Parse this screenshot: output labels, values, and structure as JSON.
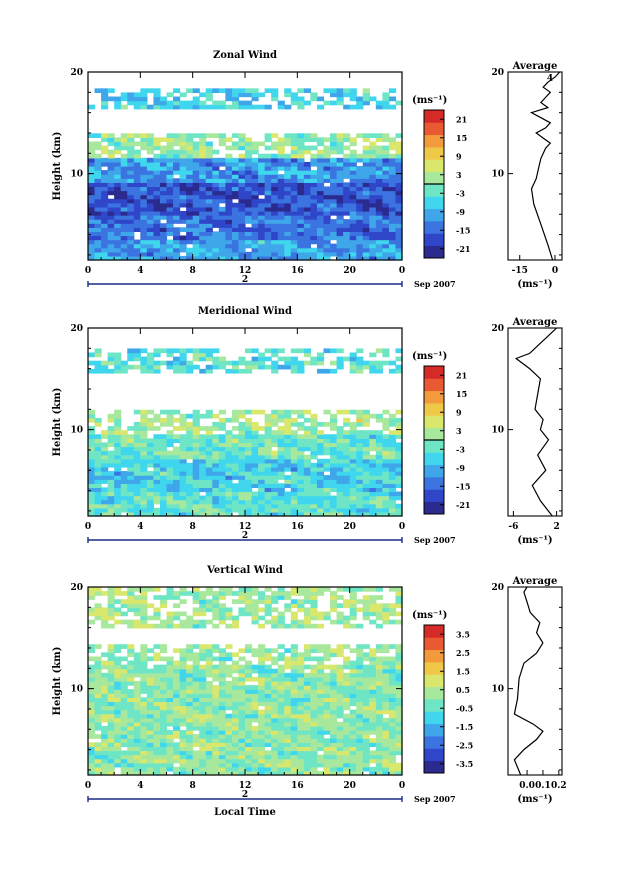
{
  "chart_data": [
    {
      "type": "heatmap",
      "title": "Zonal Wind",
      "xlabel": "",
      "ylabel": "Height (km)",
      "x_ticks": [
        "0",
        "4",
        "8",
        "12",
        "16",
        "20",
        "0"
      ],
      "y_ticks": [
        "10",
        "20"
      ],
      "x_range": [
        0,
        24
      ],
      "y_range": [
        1.5,
        20
      ],
      "date_marker": "2",
      "date_label": "Sep 2007",
      "colorbar": {
        "unit": "(ms⁻¹)",
        "labels": [
          "21",
          "15",
          "9",
          "3",
          "-3",
          "-9",
          "-15",
          "-21"
        ],
        "range": [
          -24,
          24
        ],
        "zero_line": true,
        "colors": [
          "#2b2a8f",
          "#2f46c9",
          "#3b74e0",
          "#3fa6ea",
          "#3fd6ee",
          "#6ee6c6",
          "#a8e89c",
          "#d9e86d",
          "#f0c848",
          "#f29a3c",
          "#ea5a32",
          "#d62a28"
        ]
      },
      "bands": [
        {
          "y": [
            1.5,
            3.5
          ],
          "value": -10
        },
        {
          "y": [
            3.5,
            6
          ],
          "value": -14
        },
        {
          "y": [
            6,
            9
          ],
          "value": -17
        },
        {
          "y": [
            9,
            11.5
          ],
          "value": -11
        },
        {
          "y": [
            11.5,
            14
          ],
          "value": 1,
          "patchy": true
        },
        {
          "y": [
            16.5,
            18.5
          ],
          "value": -6,
          "patchy": true
        }
      ],
      "average": {
        "title": "Average",
        "unit_label": "(ms⁻¹)",
        "x_ticks": [
          "-15",
          "0"
        ],
        "x_range": [
          -20,
          3
        ],
        "y_ticks": [
          "10",
          "20"
        ],
        "annotation": "4",
        "profile": [
          [
            1.5,
            -1
          ],
          [
            3,
            -3
          ],
          [
            5,
            -6
          ],
          [
            7,
            -9
          ],
          [
            8.5,
            -10
          ],
          [
            9.5,
            -8
          ],
          [
            10.5,
            -7
          ],
          [
            11.5,
            -6
          ],
          [
            12.5,
            -4
          ],
          [
            13,
            -2
          ],
          [
            13.5,
            -5
          ],
          [
            14,
            -8
          ],
          [
            14.5,
            -4
          ],
          [
            15,
            -2
          ],
          [
            15.5,
            -6
          ],
          [
            16,
            -10
          ],
          [
            16.5,
            -3
          ],
          [
            17,
            -6
          ],
          [
            17.5,
            -4
          ],
          [
            18,
            -2
          ],
          [
            18.5,
            -5
          ],
          [
            19,
            -3
          ],
          [
            19.5,
            0
          ],
          [
            20,
            2
          ]
        ]
      }
    },
    {
      "type": "heatmap",
      "title": "Meridional Wind",
      "xlabel": "",
      "ylabel": "Height (km)",
      "x_ticks": [
        "0",
        "4",
        "8",
        "12",
        "16",
        "20",
        "0"
      ],
      "y_ticks": [
        "10",
        "20"
      ],
      "x_range": [
        0,
        24
      ],
      "y_range": [
        1.5,
        20
      ],
      "date_marker": "2",
      "date_label": "Sep 2007",
      "colorbar": {
        "unit": "(ms⁻¹)",
        "labels": [
          "21",
          "15",
          "9",
          "3",
          "-3",
          "-9",
          "-15",
          "-21"
        ],
        "range": [
          -24,
          24
        ],
        "zero_line": true,
        "colors": [
          "#2b2a8f",
          "#2f46c9",
          "#3b74e0",
          "#3fa6ea",
          "#3fd6ee",
          "#6ee6c6",
          "#a8e89c",
          "#d9e86d",
          "#f0c848",
          "#f29a3c",
          "#ea5a32",
          "#d62a28"
        ]
      },
      "bands": [
        {
          "y": [
            1.5,
            4
          ],
          "value": -3
        },
        {
          "y": [
            4,
            7
          ],
          "value": -6
        },
        {
          "y": [
            7,
            9.5
          ],
          "value": -2
        },
        {
          "y": [
            9.5,
            12
          ],
          "value": 2,
          "patchy": true
        },
        {
          "y": [
            15.5,
            18
          ],
          "value": -4,
          "patchy": true
        }
      ],
      "average": {
        "title": "Average",
        "unit_label": "(ms⁻¹)",
        "x_ticks": [
          "-6",
          "2"
        ],
        "x_range": [
          -7,
          3
        ],
        "y_ticks": [
          "10",
          "20"
        ],
        "profile": [
          [
            1.5,
            1.2
          ],
          [
            3,
            -1
          ],
          [
            4.5,
            -2.5
          ],
          [
            6,
            0
          ],
          [
            7.5,
            -1.5
          ],
          [
            9,
            0.5
          ],
          [
            10,
            -1
          ],
          [
            11,
            -0.5
          ],
          [
            12,
            -2
          ],
          [
            13.5,
            -1.5
          ],
          [
            15,
            -1
          ],
          [
            16,
            -3
          ],
          [
            17,
            -5.5
          ],
          [
            17.5,
            -3
          ],
          [
            18.5,
            -1
          ],
          [
            19,
            0
          ],
          [
            19.5,
            1
          ],
          [
            20,
            2
          ]
        ]
      }
    },
    {
      "type": "heatmap",
      "title": "Vertical Wind",
      "xlabel": "Local Time",
      "ylabel": "Height (km)",
      "x_ticks": [
        "0",
        "4",
        "8",
        "12",
        "16",
        "20",
        "0"
      ],
      "y_ticks": [
        "10",
        "20"
      ],
      "x_range": [
        0,
        24
      ],
      "y_range": [
        1.5,
        20
      ],
      "date_marker": "2",
      "date_label": "Sep 2007",
      "colorbar": {
        "unit": "(ms⁻¹)",
        "labels": [
          "3.5",
          "2.5",
          "1.5",
          "0.5",
          "-0.5",
          "-1.5",
          "-2.5",
          "-3.5"
        ],
        "range": [
          -4,
          4
        ],
        "zero_line": false,
        "colors": [
          "#2b2a8f",
          "#2f46c9",
          "#3b74e0",
          "#3fa6ea",
          "#3fd6ee",
          "#6ee6c6",
          "#a8e89c",
          "#d9e86d",
          "#f0c848",
          "#f29a3c",
          "#ea5a32",
          "#d62a28"
        ]
      },
      "bands": [
        {
          "y": [
            1.5,
            12.5
          ],
          "value": 0.1
        },
        {
          "y": [
            12.5,
            14.5
          ],
          "value": 0.2,
          "patchy": true
        },
        {
          "y": [
            16,
            20
          ],
          "value": 0.3,
          "patchy": true
        }
      ],
      "average": {
        "title": "Average",
        "unit_label": "(ms⁻¹)",
        "x_ticks": [
          "0.0",
          "0.1",
          "0.2"
        ],
        "x_range": [
          -0.12,
          0.22
        ],
        "y_ticks": [
          "10",
          "20"
        ],
        "profile": [
          [
            1.5,
            -0.04
          ],
          [
            3,
            -0.08
          ],
          [
            4,
            -0.02
          ],
          [
            5,
            0.06
          ],
          [
            5.8,
            0.1
          ],
          [
            6.5,
            0.04
          ],
          [
            7.5,
            -0.08
          ],
          [
            9,
            -0.06
          ],
          [
            11,
            -0.05
          ],
          [
            12.5,
            -0.02
          ],
          [
            13.5,
            0.06
          ],
          [
            14.5,
            0.1
          ],
          [
            15.5,
            0.06
          ],
          [
            16.5,
            0.08
          ],
          [
            17.5,
            0.02
          ],
          [
            18.5,
            0.0
          ],
          [
            19.5,
            -0.02
          ],
          [
            20,
            0.0
          ]
        ]
      }
    }
  ]
}
